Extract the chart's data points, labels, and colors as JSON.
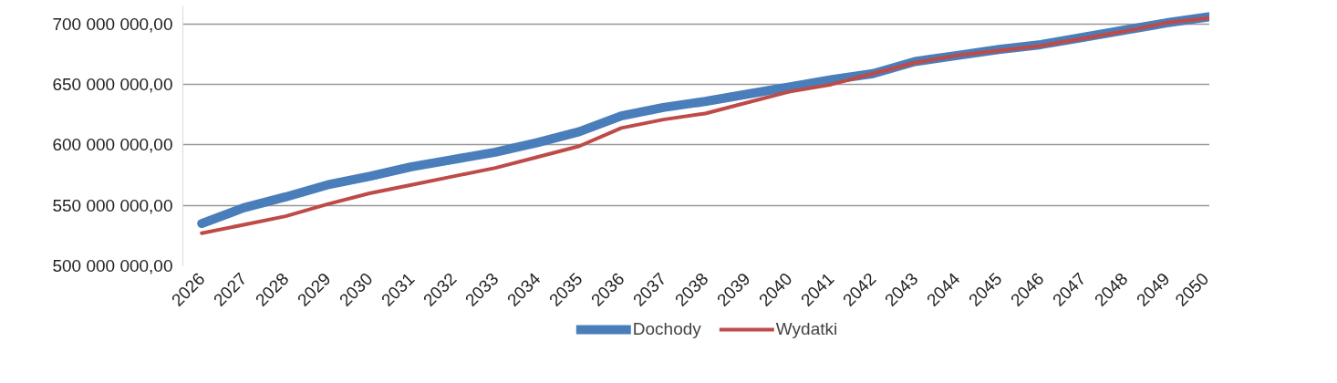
{
  "chart_data": {
    "type": "line",
    "categories": [
      "2026",
      "2027",
      "2028",
      "2029",
      "2030",
      "2031",
      "2032",
      "2033",
      "2034",
      "2035",
      "2036",
      "2037",
      "2038",
      "2039",
      "2040",
      "2041",
      "2042",
      "2043",
      "2044",
      "2045",
      "2046",
      "2047",
      "2048",
      "2049",
      "2050"
    ],
    "series": [
      {
        "name": "Dochody",
        "color": "#4a7ebb",
        "values": [
          535000000,
          548000000,
          557000000,
          567000000,
          574000000,
          582000000,
          588000000,
          594000000,
          602000000,
          611000000,
          624000000,
          631000000,
          636000000,
          642000000,
          648000000,
          654000000,
          659000000,
          669000000,
          674000000,
          679000000,
          683000000,
          689000000,
          695000000,
          701000000,
          706000000
        ]
      },
      {
        "name": "Wydatki",
        "color": "#be4b48",
        "values": [
          527000000,
          534000000,
          541000000,
          551000000,
          560000000,
          567000000,
          574000000,
          581000000,
          590000000,
          599000000,
          614000000,
          621000000,
          626000000,
          635000000,
          644000000,
          650000000,
          659000000,
          668000000,
          674000000,
          678000000,
          682000000,
          688000000,
          694000000,
          701000000,
          705000000
        ]
      }
    ],
    "ylim": [
      500000000,
      715000000
    ],
    "yticks": [
      {
        "value": 500000000,
        "label": "500 000 000,00"
      },
      {
        "value": 550000000,
        "label": "550 000 000,00"
      },
      {
        "value": 600000000,
        "label": "600 000 000,00"
      },
      {
        "value": 650000000,
        "label": "650 000 000,00"
      },
      {
        "value": 700000000,
        "label": "700 000 000,00"
      }
    ],
    "grid": "y",
    "legend": "bottom",
    "marker": "none",
    "line_style": "solid"
  }
}
